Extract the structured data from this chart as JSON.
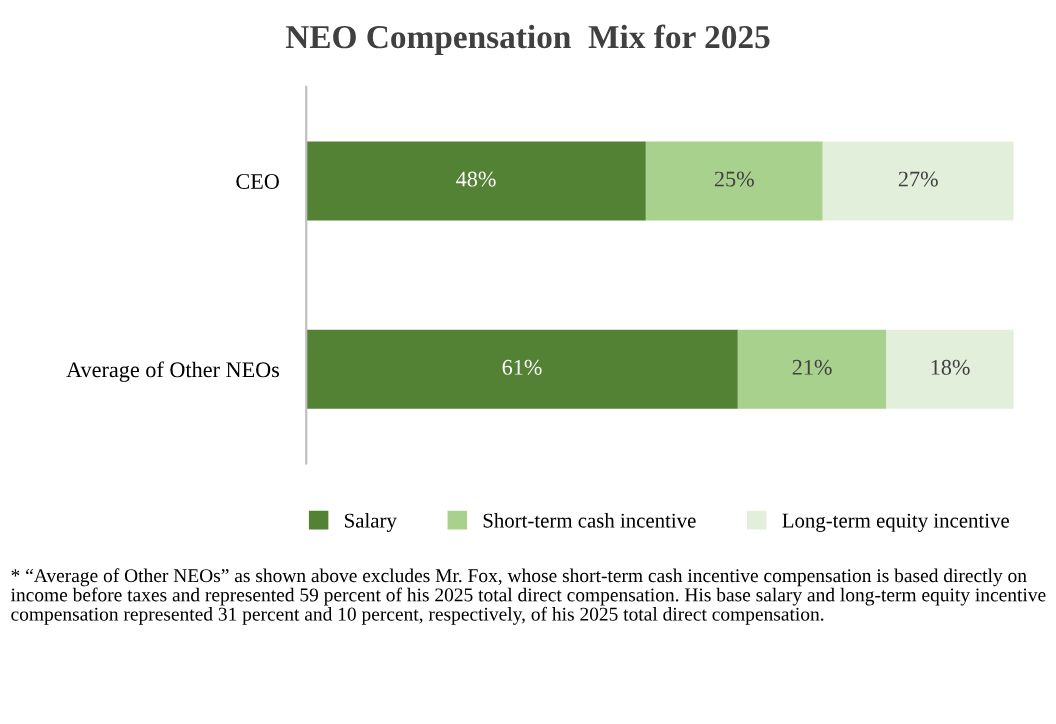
{
  "chart_data": {
    "type": "bar",
    "orientation": "horizontal",
    "stacked": true,
    "title": "NEO Compensation  Mix for 2025",
    "categories": [
      "CEO",
      "Average of Other NEOs"
    ],
    "xlim": [
      0,
      100
    ],
    "tick_labels": "y",
    "grid": false,
    "legend": "bottom",
    "series": [
      {
        "name": "Salary",
        "color": "#548235",
        "values": [
          48,
          61
        ],
        "value_labels": [
          "48%",
          "61%"
        ]
      },
      {
        "name": "Short-term cash incentive",
        "color": "#a9d18e",
        "values": [
          25,
          21
        ],
        "value_labels": [
          "25%",
          "21%"
        ]
      },
      {
        "name": "Long-term equity incentive",
        "color": "#e2efda",
        "values": [
          27,
          18
        ],
        "value_labels": [
          "27%",
          "18%"
        ]
      }
    ],
    "annotations": [
      "* “Average of Other NEOs” as shown above excludes Mr. Fox, whose short-term cash incentive compensation is based directly on income before taxes and represented 59 percent of his 2025 total direct compensation. His base salary and long-term equity incentive compensation represented 31 percent and 10 percent, respectively, of his 2025 total direct compensation."
    ]
  }
}
